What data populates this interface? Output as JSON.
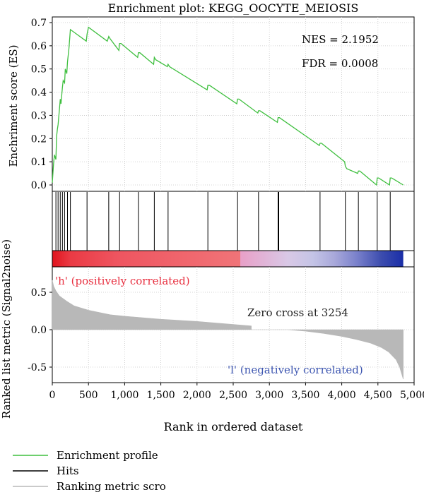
{
  "chart_data": {
    "type": "line",
    "title": "Enrichment plot: KEGG_OOCYTE_MEIOSIS",
    "es_panel": {
      "ylabel": "Enchriment score (ES)",
      "yticks": [
        "0.0",
        "0.1",
        "0.2",
        "0.3",
        "0.4",
        "0.5",
        "0.6",
        "0.7"
      ],
      "ylim": [
        0,
        0.7
      ],
      "grid": true,
      "series": [
        {
          "name": "Enrichment profile",
          "color": "#3fbf3f",
          "x": [
            0,
            20,
            30,
            50,
            60,
            70,
            80,
            100,
            110,
            120,
            140,
            150,
            170,
            180,
            200,
            210,
            230,
            250,
            470,
            480,
            500,
            760,
            780,
            800,
            920,
            930,
            950,
            1180,
            1190,
            1210,
            1400,
            1410,
            1430,
            1590,
            1600,
            1620,
            2140,
            2150,
            2170,
            2550,
            2560,
            2580,
            2840,
            2850,
            2870,
            3110,
            3120,
            3140,
            3690,
            3700,
            3720,
            4040,
            4050,
            4070,
            4220,
            4230,
            4250,
            4480,
            4490,
            4510,
            4660,
            4670,
            4690,
            4850
          ],
          "values": [
            0.01,
            0.1,
            0.13,
            0.11,
            0.21,
            0.24,
            0.26,
            0.33,
            0.37,
            0.35,
            0.42,
            0.45,
            0.44,
            0.5,
            0.48,
            0.53,
            0.59,
            0.67,
            0.62,
            0.65,
            0.68,
            0.62,
            0.64,
            0.63,
            0.58,
            0.61,
            0.61,
            0.55,
            0.57,
            0.57,
            0.52,
            0.55,
            0.54,
            0.51,
            0.52,
            0.51,
            0.41,
            0.43,
            0.43,
            0.35,
            0.37,
            0.37,
            0.31,
            0.32,
            0.32,
            0.27,
            0.29,
            0.29,
            0.17,
            0.18,
            0.18,
            0.1,
            0.08,
            0.07,
            0.05,
            0.06,
            0.06,
            0.0,
            0.03,
            0.03,
            0.0,
            0.03,
            0.03,
            0.0
          ]
        }
      ],
      "annotations": [
        "NES = 2.1952",
        "FDR = 0.0008"
      ]
    },
    "hits": {
      "name": "Hits",
      "color": "#000000",
      "positions": [
        50,
        80,
        110,
        140,
        170,
        210,
        250,
        480,
        780,
        930,
        1190,
        1410,
        1600,
        2150,
        2560,
        2850,
        3120,
        3130,
        3700,
        4050,
        4230,
        4490,
        4670
      ]
    },
    "heatmap": {
      "stops": [
        {
          "x": 0,
          "color": "#e0141e"
        },
        {
          "x": 250,
          "color": "#ea3a44"
        },
        {
          "x": 900,
          "color": "#ef5560"
        },
        {
          "x": 2600,
          "color": "#f07478"
        },
        {
          "x": 2600,
          "color": "#e8a0c8"
        },
        {
          "x": 3254,
          "color": "#d9c8e6"
        },
        {
          "x": 3600,
          "color": "#c4c4e6"
        },
        {
          "x": 3900,
          "color": "#a8a8da"
        },
        {
          "x": 4200,
          "color": "#7b82cc"
        },
        {
          "x": 4550,
          "color": "#3c4cae"
        },
        {
          "x": 4850,
          "color": "#1a2ea8"
        }
      ]
    },
    "metric_panel": {
      "ylabel": "Ranked list metric (Signal2noise)",
      "yticks": [
        "-0.5",
        "0.0",
        "0.5"
      ],
      "ylim": [
        -0.72,
        0.72
      ],
      "grid": true,
      "series": [
        {
          "name": "Ranking metric scro",
          "color": "#b8b8b8",
          "x": [
            0,
            20,
            50,
            100,
            200,
            300,
            500,
            800,
            1000,
            1500,
            2000,
            2500,
            2750,
            2750,
            3254,
            3254,
            3500,
            3750,
            4000,
            4200,
            4400,
            4550,
            4650,
            4750,
            4800,
            4850
          ],
          "values": [
            0.66,
            0.58,
            0.52,
            0.45,
            0.38,
            0.32,
            0.26,
            0.2,
            0.18,
            0.14,
            0.11,
            0.07,
            0.05,
            0.0,
            0.0,
            0.0,
            -0.02,
            -0.05,
            -0.09,
            -0.13,
            -0.18,
            -0.24,
            -0.3,
            -0.4,
            -0.5,
            -0.66
          ]
        }
      ],
      "annotations": {
        "pos": "'h' (positively correlated)",
        "pos_color": "#e83040",
        "zero_cross": "Zero cross at 3254",
        "neg": "'l' (negatively correlated)",
        "neg_color": "#3c55b0"
      }
    },
    "xaxis": {
      "xlabel": "Rank in ordered dataset",
      "xlim": [
        0,
        5000
      ],
      "ticks": [
        0,
        500,
        1000,
        1500,
        2000,
        2500,
        3000,
        3500,
        4000,
        4500,
        5000
      ],
      "tick_labels": [
        "0",
        "500",
        "1,000",
        "1,500",
        "2,000",
        "2,500",
        "3,000",
        "3,500",
        "4,000",
        "4,500",
        "5,000"
      ]
    },
    "legend": {
      "placement": "bottom-left",
      "items": [
        {
          "label": "Enrichment profile",
          "color": "#3fbf3f"
        },
        {
          "label": "Hits",
          "color": "#000000"
        },
        {
          "label": "Ranking metric scro",
          "color": "#b8b8b8"
        }
      ]
    }
  }
}
